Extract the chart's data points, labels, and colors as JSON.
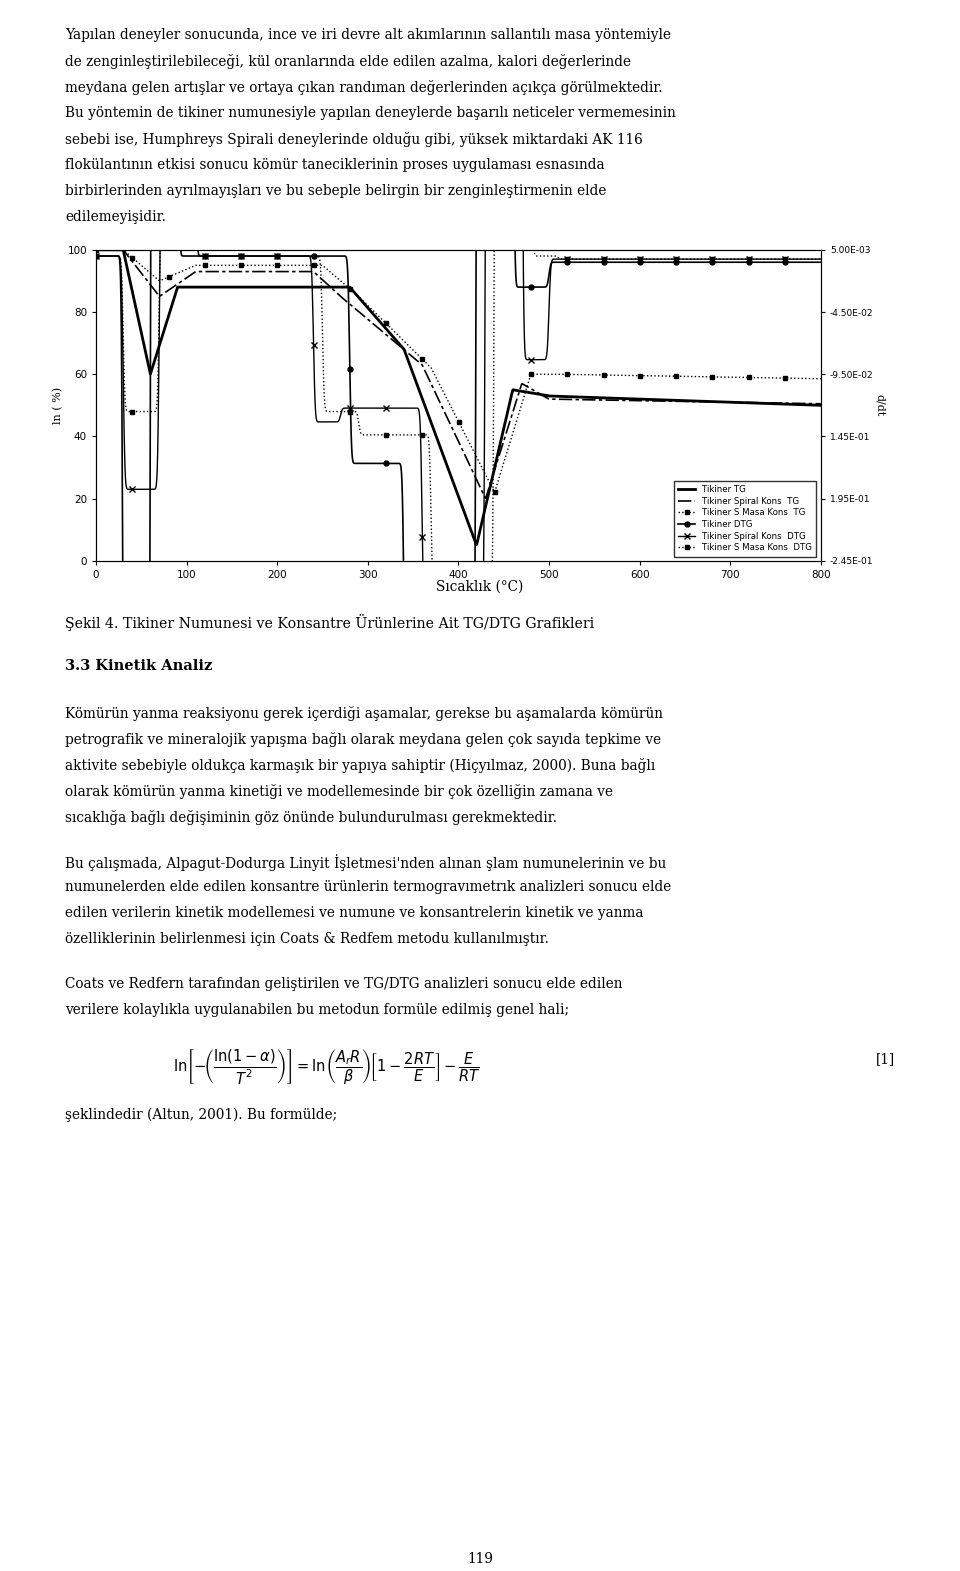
{
  "page_width": 9.6,
  "page_height": 15.71,
  "bg_color": "#ffffff",
  "text_color": "#000000",
  "para1_lines": [
    "Yapılan deneyler sonucunda, ince ve iri devre alt akımlarının sallantılı masa yöntemiyle",
    "de zenginleştirilebileceği, kül oranlarında elde edilen azalma, kalori değerlerinde",
    "meydana gelen artışlar ve ortaya çıkan randıman değerlerinden açıkça görülmektedir.",
    "Bu yöntemin de tikiner numunesiyle yapılan deneylerde başarılı neticeler vermemesinin",
    "sebebi ise, Humphreys Spirali deneylerinde olduğu gibi, yüksek miktardaki AK 116",
    "flokülantının etkisi sonucu kömür taneciklerinin proses uygulaması esnasında",
    "birbirlerinden ayrılmayışları ve bu sebeple belirgin bir zenginleştirmenin elde",
    "edilemeyişidir."
  ],
  "xlabel": "Sıcaklık (°C)",
  "ylabel_left": "ln ( %)",
  "ylabel_right": "d/dt",
  "right_axis_labels": [
    "5.00E-03",
    "-4.50E-02",
    "-9.50E-02",
    "1.45E-01",
    "1.95E-01",
    "-2.45E-01"
  ],
  "fig_caption": "Şekil 4. Tikiner Numunesi ve Konsantre Ürünlerine Ait TG/DTG Grafikleri",
  "section_title": "3.3 Kinetik Analiz",
  "para2_lines": [
    "Kömürün yanma reaksiyonu gerek içerdiği aşamalar, gerekse bu aşamalarda kömürün",
    "petrografik ve mineralojik yapışma bağlı olarak meydana gelen çok sayıda tepkime ve",
    "aktivite sebebiyle oldukça karmaşık bir yapıya sahiptir (Hiçyılmaz, 2000). Buna bağlı",
    "olarak kömürün yanma kinetiği ve modellemesinde bir çok özelliğin zamana ve",
    "sıcaklığa bağlı değişiminin göz önünde bulundurulması gerekmektedir."
  ],
  "para3_lines": [
    "Bu çalışmada, Alpagut-Dodurga Linyit İşletmesi'nden alınan şlam numunelerinin ve bu",
    "numunelerden elde edilen konsantre ürünlerin termogravımetrık analizleri sonucu elde",
    "edilen verilerin kinetik modellemesi ve numune ve konsantrelerin kinetik ve yanma",
    "özelliklerinin belirlenmesi için Coats & Redfem metodu kullanılmıştır."
  ],
  "para4_lines": [
    "Coats ve Redfern tarafından geliştirilen ve TG/DTG analizleri sonucu elde edilen",
    "verilere kolaylıkla uygulanabilen bu metodun formüle edilmiş genel hali;"
  ],
  "para5": "şeklindedir (Altun, 2001). Bu formülde;",
  "page_num": "119"
}
